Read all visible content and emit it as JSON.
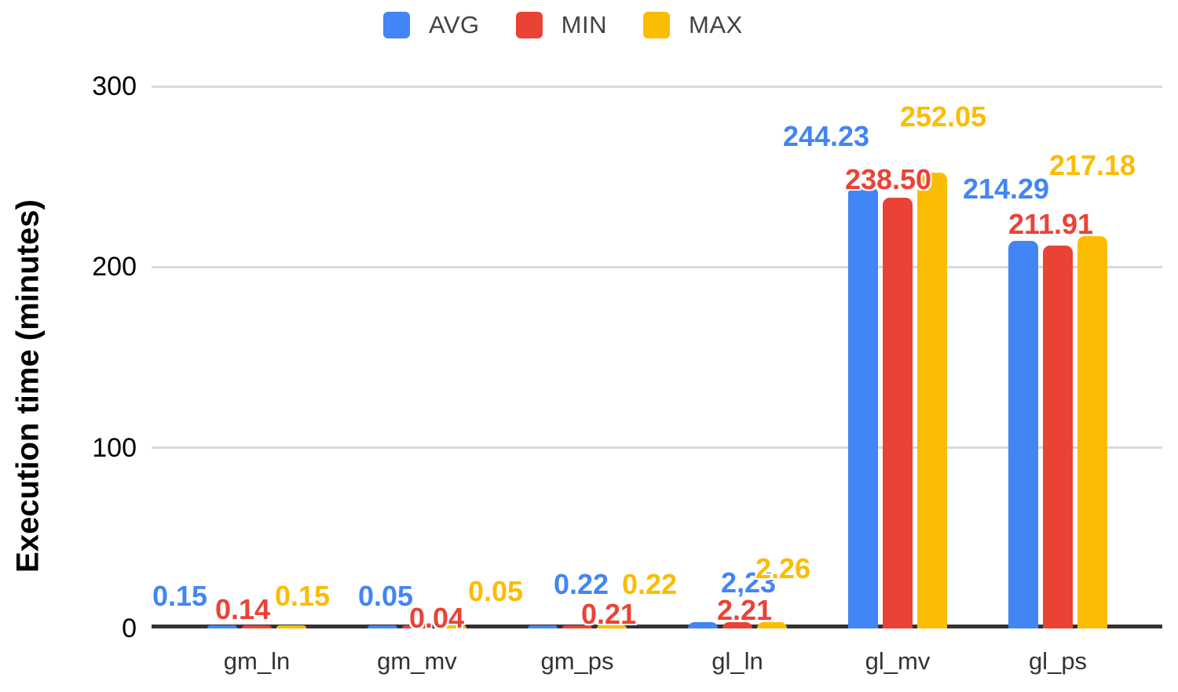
{
  "chart_data": {
    "type": "bar",
    "title": "",
    "categories": [
      "gm_ln",
      "gm_mv",
      "gm_ps",
      "gl_ln",
      "gl_mv",
      "gl_ps"
    ],
    "series": [
      {
        "name": "AVG",
        "color": "#4285F4",
        "values": [
          0.15,
          0.05,
          0.22,
          2.23,
          244.23,
          214.29
        ],
        "value_labels": [
          "0.15",
          "0.05",
          "0.22",
          "2,23",
          "244.23",
          "214.29"
        ]
      },
      {
        "name": "MIN",
        "color": "#EA4335",
        "values": [
          0.14,
          0.04,
          0.21,
          2.21,
          238.5,
          211.91
        ],
        "value_labels": [
          "0.14",
          "0.04",
          "0.21",
          "2.21",
          "238.50",
          "211.91"
        ]
      },
      {
        "name": "MAX",
        "color": "#FBBC04",
        "values": [
          0.15,
          0.05,
          0.22,
          2.26,
          252.05,
          217.18
        ],
        "value_labels": [
          "0.15",
          "0.05",
          "0.22",
          "2.26",
          "252.05",
          "217.18"
        ]
      }
    ],
    "xlabel": "",
    "ylabel": "Execution time (minutes)",
    "ylim": [
      0,
      300
    ],
    "yticks": [
      "0",
      "100",
      "200",
      "300"
    ],
    "grid": true,
    "legend_position": "top",
    "legend": [
      "AVG",
      "MIN",
      "MAX"
    ]
  },
  "colors": {
    "avg_series": "#4285F4",
    "min_series": "#EA4335",
    "max_series": "#FBBC04",
    "axis_line": "#333333",
    "gridline": "#D9D9D9",
    "tick_text": "#000000",
    "category_text": "#333333",
    "legend_text": "#424242",
    "background": "#FFFFFF"
  }
}
